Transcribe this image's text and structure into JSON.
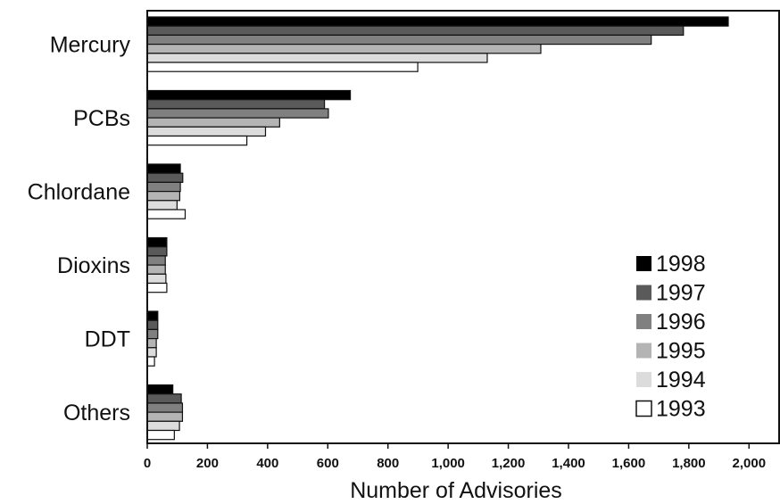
{
  "chart_data": {
    "type": "bar",
    "orientation": "horizontal",
    "categories": [
      "Mercury",
      "PCBs",
      "Chlordane",
      "Dioxins",
      "DDT",
      "Others"
    ],
    "series": [
      {
        "name": "1998",
        "color": "#000000",
        "values": [
          1931,
          675,
          110,
          65,
          35,
          85
        ]
      },
      {
        "name": "1997",
        "color": "#5a5a5a",
        "values": [
          1782,
          589,
          118,
          65,
          35,
          113
        ]
      },
      {
        "name": "1996",
        "color": "#808080",
        "values": [
          1675,
          602,
          110,
          60,
          35,
          117
        ]
      },
      {
        "name": "1995",
        "color": "#b4b4b4",
        "values": [
          1308,
          440,
          108,
          60,
          30,
          117
        ]
      },
      {
        "name": "1994",
        "color": "#dcdcdc",
        "values": [
          1130,
          393,
          99,
          62,
          30,
          107
        ]
      },
      {
        "name": "1993",
        "color": "#ffffff",
        "values": [
          899,
          331,
          126,
          65,
          24,
          90
        ]
      }
    ],
    "xlabel": "Number of Advisories",
    "xlim": [
      0,
      2100
    ],
    "xticks": [
      0,
      200,
      400,
      600,
      800,
      1000,
      1200,
      1400,
      1600,
      1800,
      2000
    ],
    "xtick_labels": [
      "0",
      "200",
      "400",
      "600",
      "800",
      "1,000",
      "1,200",
      "1,400",
      "1,600",
      "1,800",
      "2,000"
    ],
    "grid": false,
    "legend_position": "bottom-right"
  }
}
